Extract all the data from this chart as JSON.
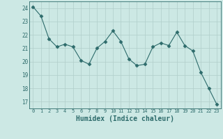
{
  "x": [
    0,
    1,
    2,
    3,
    4,
    5,
    6,
    7,
    8,
    9,
    10,
    11,
    12,
    13,
    14,
    15,
    16,
    17,
    18,
    19,
    20,
    21,
    22,
    23
  ],
  "y": [
    24.1,
    23.4,
    21.7,
    21.1,
    21.3,
    21.1,
    20.1,
    19.8,
    21.0,
    21.5,
    22.3,
    21.5,
    20.2,
    19.7,
    19.8,
    21.1,
    21.4,
    21.2,
    22.2,
    21.2,
    20.8,
    19.2,
    18.0,
    16.8
  ],
  "line_color": "#2d6b6b",
  "marker": "D",
  "marker_size": 2.5,
  "bg_color": "#cce8e4",
  "grid_color": "#b0ceca",
  "tick_color": "#2d6b6b",
  "xlabel": "Humidex (Indice chaleur)",
  "ylim": [
    16.5,
    24.5
  ],
  "xlim": [
    -0.5,
    23.5
  ],
  "yticks": [
    17,
    18,
    19,
    20,
    21,
    22,
    23,
    24
  ],
  "xticks": [
    0,
    1,
    2,
    3,
    4,
    5,
    6,
    7,
    8,
    9,
    10,
    11,
    12,
    13,
    14,
    15,
    16,
    17,
    18,
    19,
    20,
    21,
    22,
    23
  ]
}
